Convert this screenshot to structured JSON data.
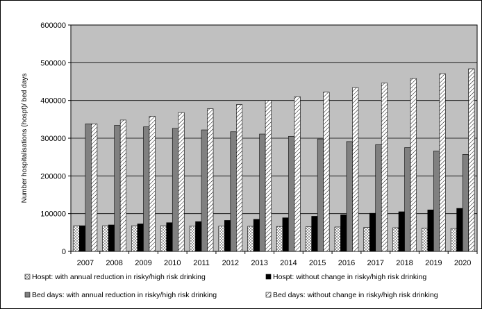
{
  "chart_data": {
    "type": "bar",
    "ylabel": "Number hospitalisations (hospt)/ bed days",
    "xlabel": "",
    "ylim": [
      0,
      600000
    ],
    "yticks": [
      0,
      100000,
      200000,
      300000,
      400000,
      500000,
      600000
    ],
    "ytick_labels": [
      "0",
      "100000",
      "200000",
      "300000",
      "400000",
      "500000",
      "600000"
    ],
    "grid": true,
    "legend_position": "bottom",
    "plot_background": "#c0c0c0",
    "categories": [
      "2007",
      "2008",
      "2009",
      "2010",
      "2011",
      "2012",
      "2013",
      "2014",
      "2015",
      "2016",
      "2017",
      "2018",
      "2019",
      "2020"
    ],
    "series": [
      {
        "name": "Hospt: with annual reduction in risky/high risk drinking",
        "style": "dotted-white",
        "values": [
          68000,
          68000,
          68000,
          68000,
          67500,
          67000,
          66500,
          66000,
          65000,
          64500,
          63500,
          62500,
          61500,
          60500
        ]
      },
      {
        "name": "Hospt: without change in risky/high risk drinking",
        "style": "solid-black",
        "values": [
          68000,
          70000,
          73000,
          76000,
          79000,
          82000,
          85000,
          89000,
          93000,
          97000,
          101000,
          105000,
          110000,
          114000
        ]
      },
      {
        "name": "Bed days: with annual reduction in risky/high risk drinking",
        "style": "solid-gray",
        "values": [
          338000,
          334000,
          330000,
          326000,
          322000,
          317000,
          311000,
          305000,
          298000,
          291000,
          283000,
          275000,
          266000,
          257000
        ]
      },
      {
        "name": "Bed days: without change in risky/high risk drinking",
        "style": "hatched-white",
        "values": [
          338000,
          348000,
          358000,
          368000,
          378000,
          389000,
          400000,
          410000,
          422000,
          434000,
          446000,
          458000,
          471000,
          484000
        ]
      }
    ]
  },
  "colors": {
    "plot_background": "#c0c0c0",
    "gray_bar": "#808080",
    "black_bar": "#000000"
  }
}
